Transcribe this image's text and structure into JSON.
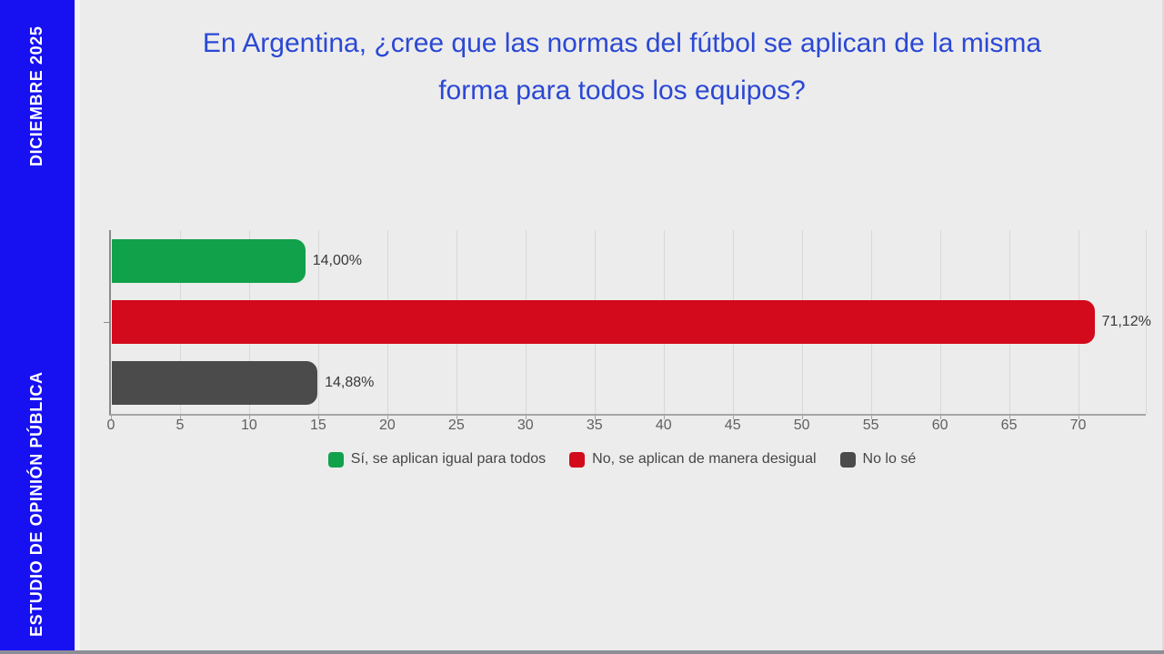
{
  "sidebar": {
    "bg_color": "#1711f2",
    "top_label": "DICIEMBRE 2025",
    "bottom_label": "ESTUDIO DE OPINIÓN PÚBLICA"
  },
  "title": {
    "color": "#2b48d4",
    "lines": [
      "En Argentina, ¿cree que las normas del fútbol se aplican de la misma",
      "forma para todos los equipos?"
    ]
  },
  "chart_data": {
    "type": "bar",
    "orientation": "horizontal",
    "title": "En Argentina, ¿cree que las normas del fútbol se aplican de la misma forma para todos los equipos?",
    "categories": [
      "Sí, se aplican igual para todos",
      "No, se aplican de manera desigual",
      "No lo sé"
    ],
    "values": [
      14.0,
      71.12,
      14.88
    ],
    "value_labels": [
      "14,00%",
      "71,12%",
      "14,88%"
    ],
    "bar_colors": [
      "#12a14b",
      "#d20a1b",
      "#4b4b4b"
    ],
    "x_ticks": [
      0,
      5,
      10,
      15,
      20,
      25,
      30,
      35,
      40,
      45,
      50,
      55,
      60,
      65,
      70
    ],
    "xlim": [
      0,
      74.9
    ],
    "grid": true,
    "legend_position": "bottom",
    "legend": [
      {
        "label": "Sí, se aplican igual para todos",
        "color": "#12a14b"
      },
      {
        "label": "No, se aplican de manera desigual",
        "color": "#d20a1b"
      },
      {
        "label": "No lo sé",
        "color": "#4b4b4b"
      }
    ]
  }
}
